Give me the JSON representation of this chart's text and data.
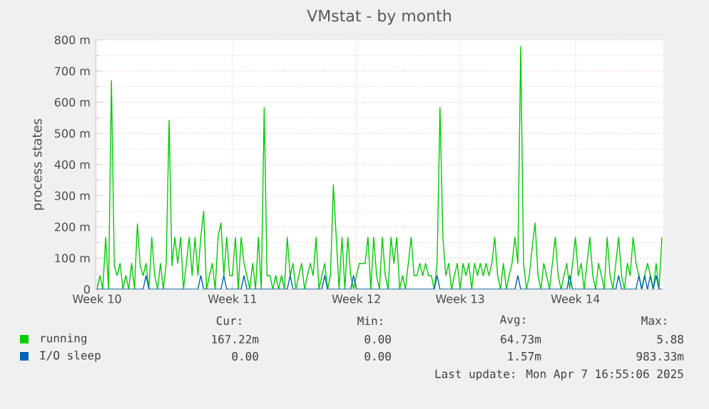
{
  "chart_data": {
    "type": "line",
    "title": "VMstat - by month",
    "ylabel": "process states",
    "categories": [
      "Week 10",
      null,
      null,
      null,
      null,
      null,
      null,
      null,
      null,
      null,
      null,
      null,
      null,
      null,
      null,
      null,
      null,
      null,
      null,
      null,
      null,
      null,
      null,
      null,
      null,
      null,
      null,
      null,
      null,
      null,
      null,
      null,
      null,
      null,
      null,
      null,
      null,
      null,
      null,
      null,
      null,
      null,
      null,
      null,
      null,
      null,
      null,
      "Week 11",
      null,
      null,
      null,
      null,
      null,
      null,
      null,
      null,
      null,
      null,
      null,
      null,
      null,
      null,
      null,
      null,
      null,
      null,
      null,
      null,
      null,
      null,
      null,
      null,
      null,
      null,
      null,
      null,
      null,
      null,
      null,
      null,
      null,
      null,
      null,
      null,
      null,
      null,
      null,
      null,
      null,
      null,
      "Week 12",
      null,
      null,
      null,
      null,
      null,
      null,
      null,
      null,
      null,
      null,
      null,
      null,
      null,
      null,
      null,
      null,
      null,
      null,
      null,
      null,
      null,
      null,
      null,
      null,
      null,
      null,
      null,
      null,
      null,
      null,
      null,
      null,
      null,
      null,
      null,
      "Week 13",
      null,
      null,
      null,
      null,
      null,
      null,
      null,
      null,
      null,
      null,
      null,
      null,
      null,
      null,
      null,
      null,
      null,
      null,
      null,
      null,
      null,
      null,
      null,
      null,
      null,
      null,
      null,
      null,
      null,
      null,
      null,
      null,
      null,
      null,
      null,
      null,
      null,
      null,
      null,
      "Week 14",
      null,
      null,
      null,
      null,
      null,
      null,
      null,
      null,
      null,
      null,
      null,
      null,
      null,
      null,
      null,
      null,
      null,
      null,
      null,
      null,
      null,
      null,
      null,
      null,
      null,
      null,
      null,
      null,
      null,
      null
    ],
    "ylim": [
      0,
      800
    ],
    "yticks": [
      0,
      {
        "value": 100,
        "label": "100 m"
      },
      {
        "value": 200,
        "label": "200 m"
      },
      {
        "value": 300,
        "label": "300 m"
      },
      {
        "value": 400,
        "label": "400 m"
      },
      {
        "value": 500,
        "label": "500 m"
      },
      {
        "value": 600,
        "label": "600 m"
      },
      {
        "value": 700,
        "label": "700 m"
      },
      {
        "value": 800,
        "label": "800 m"
      }
    ],
    "grid": true,
    "legend": "bottom",
    "series": [
      {
        "name": "running",
        "color": "#00cc00",
        "values": [
          0,
          44,
          0,
          167,
          0,
          669,
          75,
          44,
          83,
          0,
          44,
          0,
          83,
          0,
          210,
          75,
          44,
          83,
          0,
          167,
          44,
          0,
          83,
          0,
          83,
          542,
          75,
          167,
          83,
          167,
          0,
          83,
          167,
          44,
          167,
          44,
          167,
          251,
          0,
          44,
          83,
          0,
          167,
          213,
          44,
          167,
          44,
          44,
          167,
          0,
          167,
          83,
          44,
          0,
          83,
          0,
          167,
          0,
          583,
          44,
          44,
          0,
          44,
          0,
          44,
          0,
          167,
          44,
          83,
          0,
          44,
          83,
          0,
          44,
          83,
          44,
          167,
          0,
          44,
          83,
          0,
          44,
          335,
          167,
          0,
          167,
          0,
          167,
          44,
          0,
          44,
          83,
          83,
          83,
          167,
          0,
          167,
          44,
          0,
          167,
          44,
          0,
          167,
          83,
          167,
          0,
          44,
          0,
          83,
          167,
          44,
          44,
          83,
          44,
          83,
          44,
          44,
          0,
          83,
          583,
          167,
          44,
          83,
          0,
          44,
          83,
          0,
          83,
          44,
          83,
          0,
          83,
          44,
          83,
          44,
          83,
          44,
          83,
          167,
          44,
          0,
          83,
          0,
          44,
          83,
          167,
          83,
          779,
          83,
          0,
          44,
          136,
          213,
          44,
          0,
          83,
          44,
          0,
          83,
          167,
          44,
          0,
          44,
          83,
          0,
          83,
          167,
          44,
          83,
          0,
          83,
          167,
          44,
          0,
          83,
          44,
          0,
          167,
          44,
          0,
          83,
          167,
          44,
          0,
          83,
          44,
          167,
          83,
          44,
          0,
          44,
          83,
          44,
          0,
          83,
          0,
          167
        ]
      },
      {
        "name": "I/O sleep",
        "color": "#0066b3",
        "values": [
          0,
          0,
          0,
          0,
          0,
          0,
          0,
          0,
          0,
          0,
          0,
          0,
          0,
          0,
          0,
          0,
          0,
          44,
          0,
          0,
          0,
          0,
          0,
          0,
          0,
          0,
          0,
          0,
          0,
          0,
          0,
          0,
          0,
          0,
          0,
          0,
          44,
          0,
          0,
          0,
          0,
          0,
          0,
          0,
          44,
          0,
          0,
          0,
          0,
          0,
          0,
          44,
          0,
          0,
          0,
          0,
          0,
          0,
          0,
          0,
          0,
          0,
          0,
          0,
          0,
          0,
          0,
          44,
          0,
          0,
          0,
          0,
          0,
          0,
          0,
          0,
          0,
          0,
          0,
          44,
          0,
          0,
          0,
          0,
          0,
          0,
          0,
          0,
          0,
          44,
          0,
          0,
          0,
          0,
          0,
          0,
          0,
          0,
          0,
          0,
          0,
          0,
          0,
          0,
          0,
          0,
          0,
          0,
          0,
          0,
          0,
          0,
          0,
          0,
          0,
          0,
          0,
          0,
          44,
          0,
          0,
          0,
          0,
          0,
          0,
          0,
          0,
          0,
          0,
          0,
          0,
          0,
          0,
          0,
          0,
          0,
          0,
          0,
          0,
          0,
          0,
          0,
          0,
          0,
          0,
          0,
          44,
          0,
          0,
          0,
          0,
          0,
          0,
          0,
          0,
          0,
          0,
          0,
          0,
          0,
          0,
          0,
          0,
          0,
          44,
          0,
          0,
          0,
          0,
          0,
          0,
          0,
          0,
          0,
          0,
          0,
          0,
          0,
          0,
          0,
          0,
          44,
          0,
          0,
          0,
          0,
          0,
          0,
          44,
          0,
          44,
          0,
          44,
          0,
          44,
          0,
          0
        ]
      }
    ],
    "annotations": [
      "Cur:",
      "Min:",
      "Avg:",
      "Max:",
      "167.22m",
      "0.00",
      "64.73m",
      "5.88",
      "0.00",
      "0.00",
      "1.57m",
      "983.33m",
      "Last update: Mon Apr  7 16:55:06 2025"
    ]
  }
}
